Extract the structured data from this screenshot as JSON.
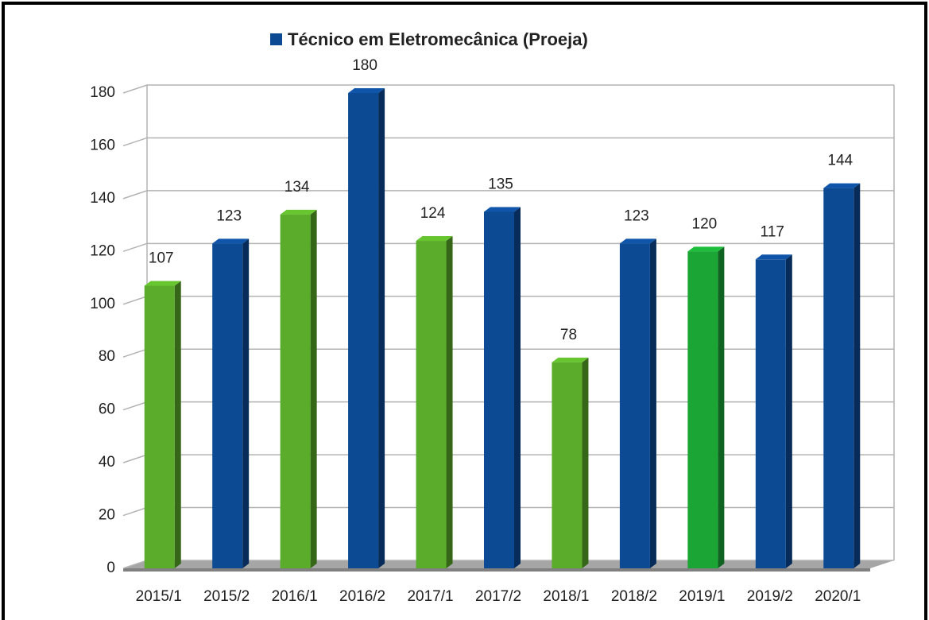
{
  "chart_data": {
    "type": "bar3d",
    "categories": [
      "2015/1",
      "2015/2",
      "2016/1",
      "2016/2",
      "2017/1",
      "2017/2",
      "2018/1",
      "2018/2",
      "2019/1",
      "2019/2",
      "2020/1"
    ],
    "series": [
      {
        "name": "Técnico em Eletromecânica (Proeja)",
        "color": "#0d4a94",
        "values": [
          107,
          123,
          134,
          180,
          124,
          135,
          78,
          123,
          120,
          117,
          144
        ],
        "bar_colors": [
          "#5aac2a",
          "#0d4a94",
          "#5aac2a",
          "#0d4a94",
          "#5aac2a",
          "#0d4a94",
          "#5aac2a",
          "#0d4a94",
          "#1aa535",
          "#0d4a94",
          "#0d4a94"
        ]
      }
    ],
    "ylim": [
      0,
      180
    ],
    "yticks": [
      0,
      20,
      40,
      60,
      80,
      100,
      120,
      140,
      160,
      180
    ],
    "grid": true,
    "legend": "top"
  }
}
